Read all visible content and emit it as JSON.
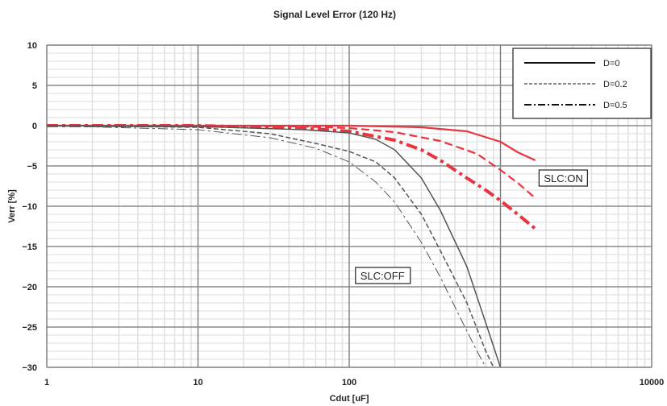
{
  "chart_data": {
    "type": "line",
    "title": "Signal Level Error (120 Hz)",
    "xlabel": "Cdut [uF]",
    "ylabel": "Verr [%]",
    "xscale": "log",
    "xlim": [
      1,
      10000
    ],
    "ylim": [
      -30,
      10
    ],
    "x_ticks": [
      1,
      10,
      100,
      10000
    ],
    "x_tick_labels": [
      "1",
      "10",
      "100",
      "10000"
    ],
    "y_ticks": [
      10,
      5,
      0,
      -5,
      -10,
      -15,
      -20,
      -25,
      -30
    ],
    "y_tick_labels": [
      "10",
      "5",
      "0",
      "−5",
      "−10",
      "−15",
      "−20",
      "−25",
      "−30"
    ],
    "grid": true,
    "legend": {
      "position": "top-right",
      "entries": [
        {
          "label": "D=0",
          "style": "solid"
        },
        {
          "label": "D=0.2",
          "style": "dashed"
        },
        {
          "label": "D=0.5",
          "style": "dashdot"
        }
      ]
    },
    "annotations": [
      {
        "text": "SLC:ON",
        "x": 1800,
        "y": -6.5
      },
      {
        "text": "SLC:OFF",
        "x": 110,
        "y": -18.6
      }
    ],
    "colors": {
      "slc_on": "#e8343f",
      "slc_off": "#555555"
    },
    "series": [
      {
        "group": "SLC:ON",
        "style": "solid",
        "color": "#e8343f",
        "x": [
          1,
          10,
          100,
          300,
          600,
          1000,
          1300,
          1700
        ],
        "y": [
          0,
          0,
          0,
          -0.2,
          -0.7,
          -2.0,
          -3.3,
          -4.3
        ]
      },
      {
        "group": "SLC:ON",
        "style": "dashed",
        "color": "#e8343f",
        "x": [
          1,
          10,
          50,
          100,
          200,
          400,
          700,
          1000,
          1300,
          1700
        ],
        "y": [
          0,
          0,
          -0.1,
          -0.3,
          -0.8,
          -1.9,
          -3.5,
          -5.5,
          -7.1,
          -9.0
        ]
      },
      {
        "group": "SLC:ON",
        "style": "dashdot",
        "color": "#e8343f",
        "x": [
          1,
          10,
          30,
          60,
          100,
          200,
          300,
          400,
          600,
          800,
          1000,
          1300,
          1700
        ],
        "y": [
          0,
          0,
          -0.2,
          -0.4,
          -0.7,
          -1.8,
          -3.0,
          -4.3,
          -6.5,
          -8.0,
          -9.3,
          -11.0,
          -12.8
        ]
      },
      {
        "group": "SLC:OFF",
        "style": "solid",
        "color": "#555555",
        "x": [
          1,
          10,
          50,
          100,
          150,
          200,
          300,
          400,
          600,
          800,
          1000
        ],
        "y": [
          0,
          -0.1,
          -0.5,
          -0.9,
          -1.7,
          -3.0,
          -6.5,
          -10.5,
          -17.5,
          -24.5,
          -30
        ]
      },
      {
        "group": "SLC:OFF",
        "style": "dashed",
        "color": "#555555",
        "x": [
          1,
          10,
          30,
          60,
          100,
          150,
          200,
          300,
          400,
          600,
          800,
          900
        ],
        "y": [
          0,
          -0.2,
          -1.0,
          -2.2,
          -3.2,
          -4.5,
          -6.5,
          -11.0,
          -15.5,
          -22.0,
          -28.0,
          -30
        ]
      },
      {
        "group": "SLC:OFF",
        "style": "dashdot",
        "color": "#555555",
        "x": [
          1,
          10,
          30,
          60,
          100,
          150,
          200,
          300,
          400,
          500,
          600,
          700,
          800
        ],
        "y": [
          0,
          -0.5,
          -1.5,
          -2.8,
          -4.5,
          -7.0,
          -9.5,
          -14.5,
          -18.8,
          -22.5,
          -25.5,
          -28.0,
          -30
        ]
      }
    ]
  }
}
